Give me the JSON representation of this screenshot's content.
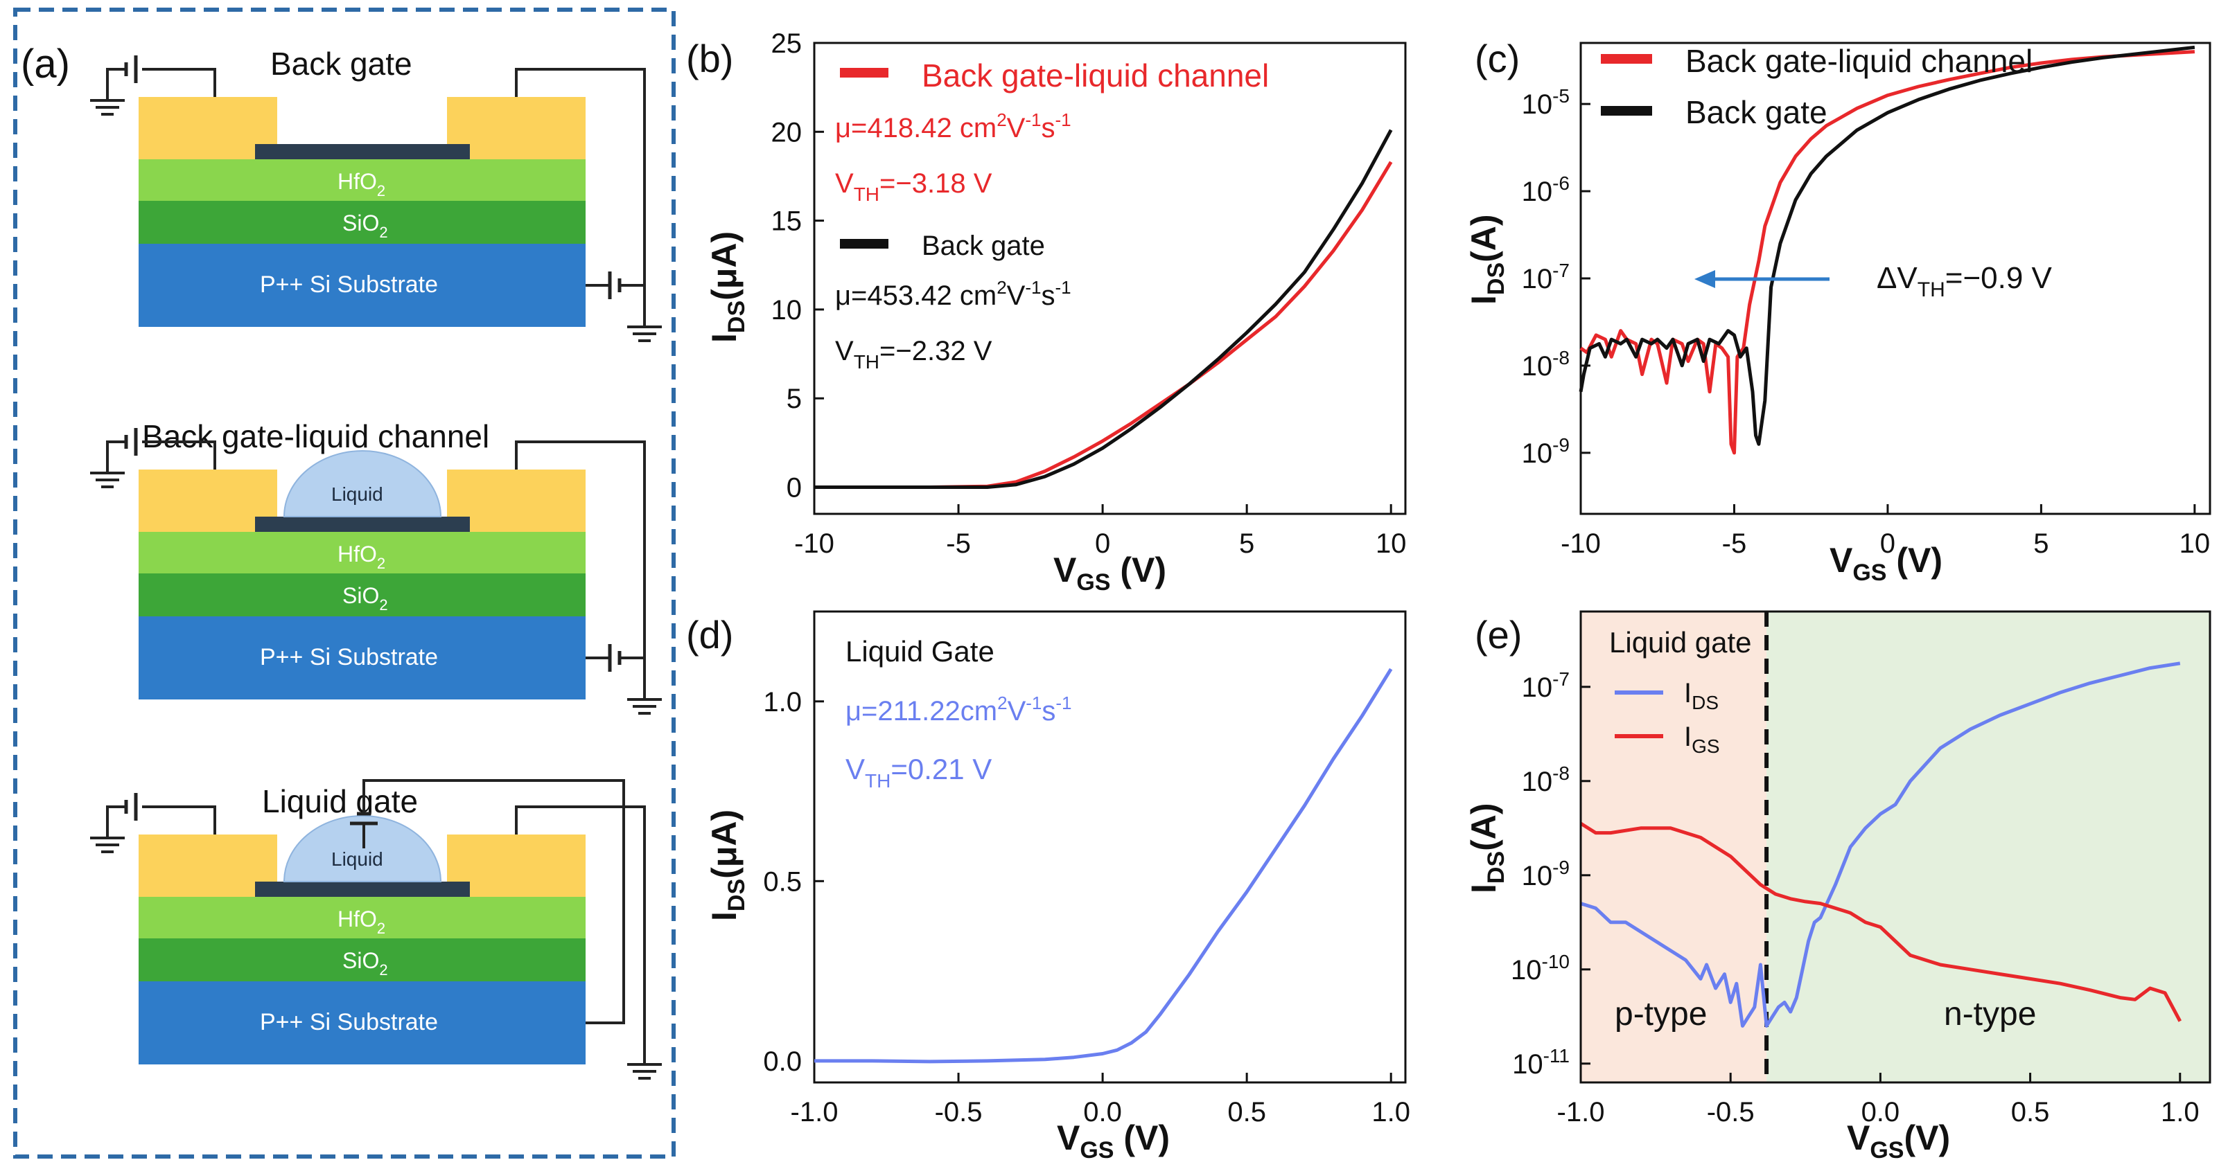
{
  "figure": {
    "colors": {
      "red": "#e8282b",
      "black": "#111111",
      "blue": "#6a7ff0",
      "gold": "#fcd25b",
      "hfo2": "#8ad64d",
      "sio2": "#3da638",
      "substrate": "#2f7cc9",
      "channel": "#2c3e50",
      "liquid": "#b5d1ef",
      "dash_box": "#2e6aa6",
      "p_region": "#fbe7dc",
      "n_region": "#e4f0dd"
    },
    "panel_a": {
      "label": "(a)",
      "devices": [
        {
          "title": "Back gate",
          "liquid": "",
          "hfo2": "HfO",
          "sio2": "SiO",
          "sub2": "2",
          "substrate": "P++ Si Substrate"
        },
        {
          "title": "Back gate-liquid channel",
          "liquid": "Liquid",
          "hfo2": "HfO",
          "sio2": "SiO",
          "sub2": "2",
          "substrate": "P++ Si Substrate"
        },
        {
          "title": "Liquid gate",
          "liquid": "Liquid",
          "hfo2": "HfO",
          "sio2": "SiO",
          "sub2": "2",
          "substrate": "P++ Si Substrate"
        }
      ]
    }
  },
  "chart_data": [
    {
      "panel": "(b)",
      "type": "line",
      "yscale": "linear",
      "xlabel": {
        "main": "V",
        "sub": "GS",
        "tail": " (V)"
      },
      "ylabel": {
        "main": "I",
        "sub": "DS",
        "tail": "(μA)"
      },
      "xlim": [
        -10,
        10.5
      ],
      "ylim": [
        -1.5,
        25
      ],
      "xticks": [
        -10,
        -5,
        0,
        5,
        10
      ],
      "yticks": [
        0,
        5,
        10,
        15,
        20,
        25
      ],
      "series": [
        {
          "name": "Back gate-liquid channel",
          "color": "red",
          "x": [
            -10,
            -6,
            -4,
            -3,
            -2,
            -1,
            0,
            1,
            2,
            3,
            4,
            5,
            6,
            7,
            8,
            9,
            10
          ],
          "y": [
            0,
            0,
            0.05,
            0.3,
            0.9,
            1.7,
            2.6,
            3.6,
            4.7,
            5.8,
            7.0,
            8.3,
            9.6,
            11.3,
            13.3,
            15.6,
            18.3
          ]
        },
        {
          "name": "Back gate",
          "color": "black",
          "x": [
            -10,
            -6,
            -4,
            -3,
            -2,
            -1,
            0,
            1,
            2,
            3,
            4,
            5,
            6,
            7,
            8,
            9,
            10
          ],
          "y": [
            0,
            0,
            0,
            0.15,
            0.6,
            1.3,
            2.2,
            3.3,
            4.5,
            5.8,
            7.2,
            8.7,
            10.3,
            12.1,
            14.5,
            17.1,
            20.1
          ]
        }
      ],
      "annotations": [
        {
          "text": "Back gate-liquid channel",
          "color": "red"
        },
        {
          "pre": "μ=418.42 cm",
          "sup1": "2",
          "mid": "V",
          "sup2": "-1",
          "mid2": "s",
          "sup3": "-1",
          "color": "red"
        },
        {
          "pre": "V",
          "sub": "TH",
          "post": "=−3.18 V",
          "color": "red"
        },
        {
          "text": "Back gate",
          "color": "black"
        },
        {
          "pre": "μ=453.42 cm",
          "sup1": "2",
          "mid": "V",
          "sup2": "-1",
          "mid2": "s",
          "sup3": "-1",
          "color": "black"
        },
        {
          "pre": "V",
          "sub": "TH",
          "post": "=−2.32 V",
          "color": "black"
        }
      ]
    },
    {
      "panel": "(c)",
      "type": "line",
      "yscale": "log",
      "xlabel": {
        "main": "V",
        "sub": "GS",
        "tail": " (V)"
      },
      "ylabel": {
        "main": "I",
        "sub": "DS",
        "tail": "(A)"
      },
      "xlim": [
        -10,
        10.5
      ],
      "ylim": [
        -9.7,
        -4.3
      ],
      "xticks": [
        -10,
        -5,
        0,
        5,
        10
      ],
      "yticks": [
        {
          "base": "10",
          "exp": "-5",
          "v": -5
        },
        {
          "base": "10",
          "exp": "-6",
          "v": -6
        },
        {
          "base": "10",
          "exp": "-7",
          "v": -7
        },
        {
          "base": "10",
          "exp": "-8",
          "v": -8
        },
        {
          "base": "10",
          "exp": "-9",
          "v": -9
        }
      ],
      "series": [
        {
          "name": "Back gate-liquid channel",
          "color": "red",
          "x": [
            -10,
            -9.8,
            -9.5,
            -9.2,
            -9,
            -8.7,
            -8.5,
            -8.2,
            -8,
            -7.7,
            -7.5,
            -7.2,
            -7,
            -6.7,
            -6.5,
            -6.2,
            -6,
            -5.8,
            -5.6,
            -5.4,
            -5.2,
            -5.1,
            -5,
            -4.9,
            -4.7,
            -4.5,
            -4.2,
            -4,
            -3.5,
            -3,
            -2.5,
            -2,
            -1.5,
            -1,
            0,
            1,
            2,
            3,
            4,
            5,
            6,
            7,
            8,
            9,
            10
          ],
          "y": [
            -7.8,
            -7.85,
            -7.65,
            -7.7,
            -7.9,
            -7.6,
            -7.7,
            -7.75,
            -8.1,
            -7.7,
            -7.75,
            -8.2,
            -7.7,
            -7.75,
            -7.95,
            -7.7,
            -7.75,
            -8.3,
            -7.75,
            -7.8,
            -7.9,
            -8.9,
            -9.0,
            -7.9,
            -7.8,
            -7.3,
            -6.8,
            -6.4,
            -5.9,
            -5.6,
            -5.4,
            -5.25,
            -5.15,
            -5.05,
            -4.9,
            -4.8,
            -4.72,
            -4.65,
            -4.58,
            -4.53,
            -4.49,
            -4.46,
            -4.44,
            -4.42,
            -4.4
          ]
        },
        {
          "name": "Back gate",
          "color": "black",
          "x": [
            -10,
            -9.9,
            -9.7,
            -9.4,
            -9.2,
            -9,
            -8.7,
            -8.5,
            -8.2,
            -8,
            -7.7,
            -7.5,
            -7.2,
            -7,
            -6.7,
            -6.5,
            -6.2,
            -6,
            -5.8,
            -5.5,
            -5.2,
            -5,
            -4.8,
            -4.6,
            -4.4,
            -4.3,
            -4.2,
            -4.0,
            -3.8,
            -3.5,
            -3,
            -2.5,
            -2,
            -1.5,
            -1,
            0,
            1,
            2,
            3,
            4,
            5,
            6,
            7,
            8,
            9,
            10
          ],
          "y": [
            -8.3,
            -8.1,
            -7.8,
            -7.75,
            -7.9,
            -7.7,
            -7.75,
            -7.7,
            -7.9,
            -7.7,
            -7.75,
            -7.7,
            -7.8,
            -7.7,
            -8.0,
            -7.75,
            -7.7,
            -7.95,
            -7.7,
            -7.75,
            -7.6,
            -7.65,
            -7.9,
            -7.8,
            -8.3,
            -8.8,
            -8.9,
            -8.4,
            -7.1,
            -6.6,
            -6.1,
            -5.8,
            -5.6,
            -5.45,
            -5.3,
            -5.1,
            -4.95,
            -4.83,
            -4.73,
            -4.65,
            -4.58,
            -4.52,
            -4.47,
            -4.43,
            -4.39,
            -4.35
          ]
        }
      ],
      "legend": [
        {
          "text": "Back gate-liquid channel",
          "color": "red"
        },
        {
          "text": "Back gate",
          "color": "black"
        }
      ],
      "annotation": {
        "pre": "ΔV",
        "sub": "TH",
        "post": "=−0.9 V",
        "arrow_color": "#2f7cc9"
      }
    },
    {
      "panel": "(d)",
      "type": "line",
      "yscale": "linear",
      "xlabel": {
        "main": "V",
        "sub": "GS",
        "tail": " (V)"
      },
      "ylabel": {
        "main": "I",
        "sub": "DS",
        "tail": "(μA)"
      },
      "xlim": [
        -1.0,
        1.05
      ],
      "ylim": [
        -0.06,
        1.25
      ],
      "xticks": [
        "-1.0",
        "-0.5",
        "0.0",
        "0.5",
        "1.0"
      ],
      "yticks": [
        "0.0",
        "0.5",
        "1.0"
      ],
      "series": [
        {
          "name": "Liquid Gate",
          "color": "blue",
          "x": [
            -1.0,
            -0.8,
            -0.6,
            -0.4,
            -0.2,
            -0.1,
            0.0,
            0.05,
            0.1,
            0.15,
            0.2,
            0.3,
            0.4,
            0.5,
            0.6,
            0.7,
            0.8,
            0.9,
            1.0
          ],
          "y": [
            0.0,
            0.0,
            -0.002,
            0.0,
            0.004,
            0.01,
            0.02,
            0.03,
            0.05,
            0.08,
            0.13,
            0.24,
            0.36,
            0.47,
            0.59,
            0.71,
            0.84,
            0.96,
            1.09
          ]
        }
      ],
      "annotations": [
        {
          "text": "Liquid Gate",
          "color": "black"
        },
        {
          "pre": "μ=211.22cm",
          "sup1": "2",
          "mid": "V",
          "sup2": "-1",
          "mid2": "s",
          "sup3": "-1",
          "color": "blue"
        },
        {
          "pre": "V",
          "sub": "TH",
          "post": "=0.21 V",
          "color": "blue"
        }
      ]
    },
    {
      "panel": "(e)",
      "type": "line",
      "yscale": "log",
      "xlabel": {
        "main": "V",
        "sub": "GS",
        "tail": "(V)"
      },
      "ylabel": {
        "main": "I",
        "sub": "DS",
        "tail": "(A)"
      },
      "xlim": [
        -1.0,
        1.1
      ],
      "ylim": [
        -11.2,
        -6.2
      ],
      "xticks": [
        "-1.0",
        "-0.5",
        "0.0",
        "0.5",
        "1.0"
      ],
      "yticks": [
        {
          "base": "10",
          "exp": "-7",
          "v": -7
        },
        {
          "base": "10",
          "exp": "-8",
          "v": -8
        },
        {
          "base": "10",
          "exp": "-9",
          "v": -9
        },
        {
          "base": "10",
          "exp": "-10",
          "v": -10
        },
        {
          "base": "10",
          "exp": "-11",
          "v": -11
        }
      ],
      "divider_x": -0.38,
      "regions": [
        {
          "text": "p-type"
        },
        {
          "text": "n-type"
        }
      ],
      "legend_title": "Liquid gate",
      "series": [
        {
          "name_main": "I",
          "name_sub": "DS",
          "color": "blue",
          "x": [
            -1.0,
            -0.95,
            -0.9,
            -0.85,
            -0.8,
            -0.75,
            -0.7,
            -0.65,
            -0.6,
            -0.58,
            -0.55,
            -0.52,
            -0.5,
            -0.48,
            -0.46,
            -0.44,
            -0.42,
            -0.4,
            -0.38,
            -0.36,
            -0.34,
            -0.32,
            -0.3,
            -0.28,
            -0.26,
            -0.24,
            -0.22,
            -0.2,
            -0.15,
            -0.1,
            -0.05,
            0.0,
            0.05,
            0.1,
            0.2,
            0.3,
            0.4,
            0.5,
            0.6,
            0.7,
            0.8,
            0.9,
            1.0
          ],
          "y": [
            -9.3,
            -9.35,
            -9.5,
            -9.5,
            -9.6,
            -9.7,
            -9.8,
            -9.9,
            -10.1,
            -9.95,
            -10.2,
            -10.05,
            -10.35,
            -10.15,
            -10.6,
            -10.5,
            -10.4,
            -9.95,
            -10.6,
            -10.5,
            -10.4,
            -10.35,
            -10.45,
            -10.3,
            -10.0,
            -9.7,
            -9.5,
            -9.45,
            -9.1,
            -8.7,
            -8.5,
            -8.35,
            -8.25,
            -8.0,
            -7.65,
            -7.45,
            -7.3,
            -7.18,
            -7.06,
            -6.96,
            -6.88,
            -6.8,
            -6.75
          ]
        },
        {
          "name_main": "I",
          "name_sub": "GS",
          "color": "red",
          "x": [
            -1.0,
            -0.95,
            -0.9,
            -0.8,
            -0.7,
            -0.6,
            -0.55,
            -0.5,
            -0.45,
            -0.4,
            -0.35,
            -0.3,
            -0.25,
            -0.2,
            -0.1,
            -0.05,
            0.0,
            0.05,
            0.1,
            0.2,
            0.3,
            0.4,
            0.5,
            0.6,
            0.7,
            0.8,
            0.85,
            0.9,
            0.95,
            1.0
          ],
          "y": [
            -8.45,
            -8.55,
            -8.55,
            -8.5,
            -8.5,
            -8.6,
            -8.7,
            -8.8,
            -8.95,
            -9.1,
            -9.2,
            -9.25,
            -9.28,
            -9.3,
            -9.4,
            -9.5,
            -9.55,
            -9.7,
            -9.85,
            -9.95,
            -10.0,
            -10.05,
            -10.1,
            -10.15,
            -10.22,
            -10.3,
            -10.32,
            -10.2,
            -10.25,
            -10.55
          ]
        }
      ]
    }
  ]
}
